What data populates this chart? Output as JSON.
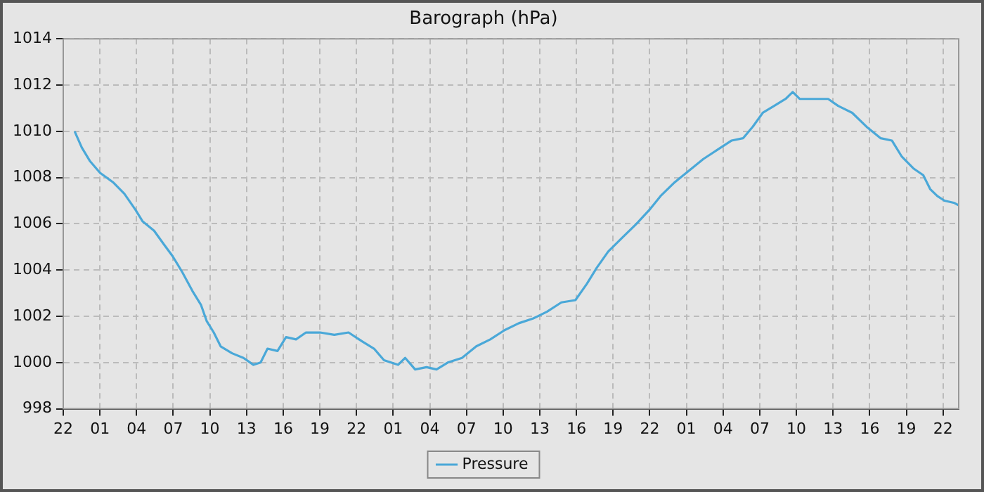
{
  "chart_data": {
    "type": "line",
    "title": "Barograph (hPa)",
    "xlim": [
      "--01-01T22:00",
      "--01-04T23:17"
    ],
    "xticks": [
      {
        "value": "--01-01T22:00",
        "label": "22"
      },
      {
        "value": "--01-02T01:00",
        "label": "01"
      },
      {
        "value": "--01-02T04:00",
        "label": "04"
      },
      {
        "value": "--01-02T07:00",
        "label": "07"
      },
      {
        "value": "--01-02T10:00",
        "label": "10"
      },
      {
        "value": "--01-02T13:00",
        "label": "13"
      },
      {
        "value": "--01-02T16:00",
        "label": "16"
      },
      {
        "value": "--01-02T19:00",
        "label": "19"
      },
      {
        "value": "--01-02T22:00",
        "label": "22"
      },
      {
        "value": "--01-03T01:00",
        "label": "01"
      },
      {
        "value": "--01-03T04:00",
        "label": "04"
      },
      {
        "value": "--01-03T07:00",
        "label": "07"
      },
      {
        "value": "--01-03T10:00",
        "label": "10"
      },
      {
        "value": "--01-03T13:00",
        "label": "13"
      },
      {
        "value": "--01-03T16:00",
        "label": "16"
      },
      {
        "value": "--01-03T19:00",
        "label": "19"
      },
      {
        "value": "--01-03T22:00",
        "label": "22"
      },
      {
        "value": "--01-04T01:00",
        "label": "01"
      },
      {
        "value": "--01-04T04:00",
        "label": "04"
      },
      {
        "value": "--01-04T07:00",
        "label": "07"
      },
      {
        "value": "--01-04T10:00",
        "label": "10"
      },
      {
        "value": "--01-04T13:00",
        "label": "13"
      },
      {
        "value": "--01-04T16:00",
        "label": "16"
      },
      {
        "value": "--01-04T19:00",
        "label": "19"
      },
      {
        "value": "--01-04T22:00",
        "label": "22"
      }
    ],
    "ylim": [
      998,
      1014
    ],
    "yticks": [
      998,
      1000,
      1002,
      1004,
      1006,
      1008,
      1010,
      1012,
      1014
    ],
    "grid": true,
    "legend": "bottom",
    "marker": "none",
    "line_style": "solid",
    "x": [
      "--01-01T22:56",
      "--01-01T23:31",
      "--01-02T00:12",
      "--01-02T01:01",
      "--01-02T02:04",
      "--01-02T03:00",
      "--01-02T03:55",
      "--01-02T04:30",
      "--01-02T05:26",
      "--01-02T06:15",
      "--01-02T06:57",
      "--01-02T07:45",
      "--01-02T08:34",
      "--01-02T09:16",
      "--01-02T09:44",
      "--01-02T10:19",
      "--01-02T10:53",
      "--01-02T11:49",
      "--01-02T12:45",
      "--01-02T13:34",
      "--01-02T14:09",
      "--01-02T14:43",
      "--01-02T15:32",
      "--01-02T16:14",
      "--01-02T17:03",
      "--01-02T17:52",
      "--01-02T19:01",
      "--01-02T20:11",
      "--01-02T21:21",
      "--01-02T22:30",
      "--01-02T23:26",
      "--01-03T00:15",
      "--01-03T01:24",
      "--01-03T01:59",
      "--01-03T02:48",
      "--01-03T03:44",
      "--01-03T04:33",
      "--01-03T05:28",
      "--01-03T06:38",
      "--01-03T07:48",
      "--01-03T08:57",
      "--01-03T10:07",
      "--01-03T11:17",
      "--01-03T12:26",
      "--01-03T13:36",
      "--01-03T14:46",
      "--01-03T15:55",
      "--01-03T16:51",
      "--01-03T17:40",
      "--01-03T18:36",
      "--01-03T19:45",
      "--01-03T20:55",
      "--01-03T21:58",
      "--01-03T22:53",
      "--01-04T00:03",
      "--01-04T01:13",
      "--01-04T02:23",
      "--01-04T03:32",
      "--01-04T04:42",
      "--01-04T05:38",
      "--01-04T06:26",
      "--01-04T07:15",
      "--01-04T08:11",
      "--01-04T09:07",
      "--01-04T09:42",
      "--01-04T10:16",
      "--01-04T11:26",
      "--01-04T12:36",
      "--01-04T13:25",
      "--01-04T14:34",
      "--01-04T15:44",
      "--01-04T16:54",
      "--01-04T17:49",
      "--01-04T18:38",
      "--01-04T19:34",
      "--01-04T20:23",
      "--01-04T20:57",
      "--01-04T21:32",
      "--01-04T22:07",
      "--01-04T22:56",
      "--01-04T23:17"
    ],
    "series": [
      {
        "name": "Pressure",
        "color": "#4aa8d8",
        "values": [
          1010.0,
          1009.3,
          1008.7,
          1008.2,
          1007.8,
          1007.3,
          1006.6,
          1006.1,
          1005.7,
          1005.1,
          1004.6,
          1003.9,
          1003.1,
          1002.5,
          1001.8,
          1001.3,
          1000.7,
          1000.4,
          1000.2,
          999.9,
          1000.0,
          1000.6,
          1000.5,
          1001.1,
          1001.0,
          1001.3,
          1001.3,
          1001.2,
          1001.3,
          1000.9,
          1000.6,
          1000.1,
          999.9,
          1000.2,
          999.7,
          999.8,
          999.7,
          1000.0,
          1000.2,
          1000.7,
          1001.0,
          1001.4,
          1001.7,
          1001.9,
          1002.2,
          1002.6,
          1002.7,
          1003.4,
          1004.1,
          1004.8,
          1005.4,
          1006.0,
          1006.6,
          1007.2,
          1007.8,
          1008.3,
          1008.8,
          1009.2,
          1009.6,
          1009.7,
          1010.2,
          1010.8,
          1011.1,
          1011.4,
          1011.7,
          1011.4,
          1011.4,
          1011.4,
          1011.1,
          1010.8,
          1010.2,
          1009.7,
          1009.6,
          1008.9,
          1008.4,
          1008.1,
          1007.5,
          1007.2,
          1007.0,
          1006.9,
          1006.8
        ]
      }
    ]
  }
}
